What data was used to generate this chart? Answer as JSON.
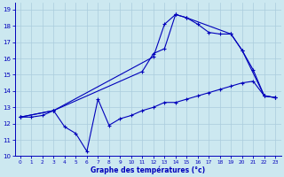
{
  "xlabel": "Graphe des températures (°c)",
  "xlim": [
    -0.5,
    23.5
  ],
  "ylim": [
    10,
    19.4
  ],
  "yticks": [
    10,
    11,
    12,
    13,
    14,
    15,
    16,
    17,
    18,
    19
  ],
  "xticks": [
    0,
    1,
    2,
    3,
    4,
    5,
    6,
    7,
    8,
    9,
    10,
    11,
    12,
    13,
    14,
    15,
    16,
    17,
    18,
    19,
    20,
    21,
    22,
    23
  ],
  "bg_color": "#cce8f0",
  "line_color": "#0000bb",
  "grid_color": "#aaccdd",
  "line1_x": [
    0,
    1,
    2,
    3,
    4,
    5,
    6,
    7,
    8,
    9,
    10,
    11,
    12,
    13,
    14,
    15,
    16,
    17,
    18,
    19,
    20,
    21,
    22,
    23
  ],
  "line1_y": [
    12.4,
    12.4,
    12.5,
    12.8,
    11.8,
    11.4,
    10.3,
    13.5,
    11.9,
    12.3,
    12.5,
    12.8,
    13.0,
    13.3,
    13.3,
    13.5,
    13.7,
    13.9,
    14.1,
    14.3,
    14.5,
    14.6,
    13.7,
    13.6
  ],
  "line2_x": [
    0,
    3,
    12,
    13,
    14,
    15,
    16,
    17,
    18,
    19,
    20,
    21,
    22,
    23
  ],
  "line2_y": [
    12.4,
    12.8,
    16.1,
    18.1,
    18.7,
    18.5,
    18.1,
    17.6,
    17.5,
    17.5,
    16.5,
    15.3,
    13.7,
    13.6
  ],
  "line3_x": [
    0,
    3,
    11,
    12,
    13,
    14,
    15,
    19,
    20,
    22,
    23
  ],
  "line3_y": [
    12.4,
    12.8,
    15.2,
    16.3,
    16.6,
    18.7,
    18.5,
    17.5,
    16.5,
    13.7,
    13.6
  ]
}
